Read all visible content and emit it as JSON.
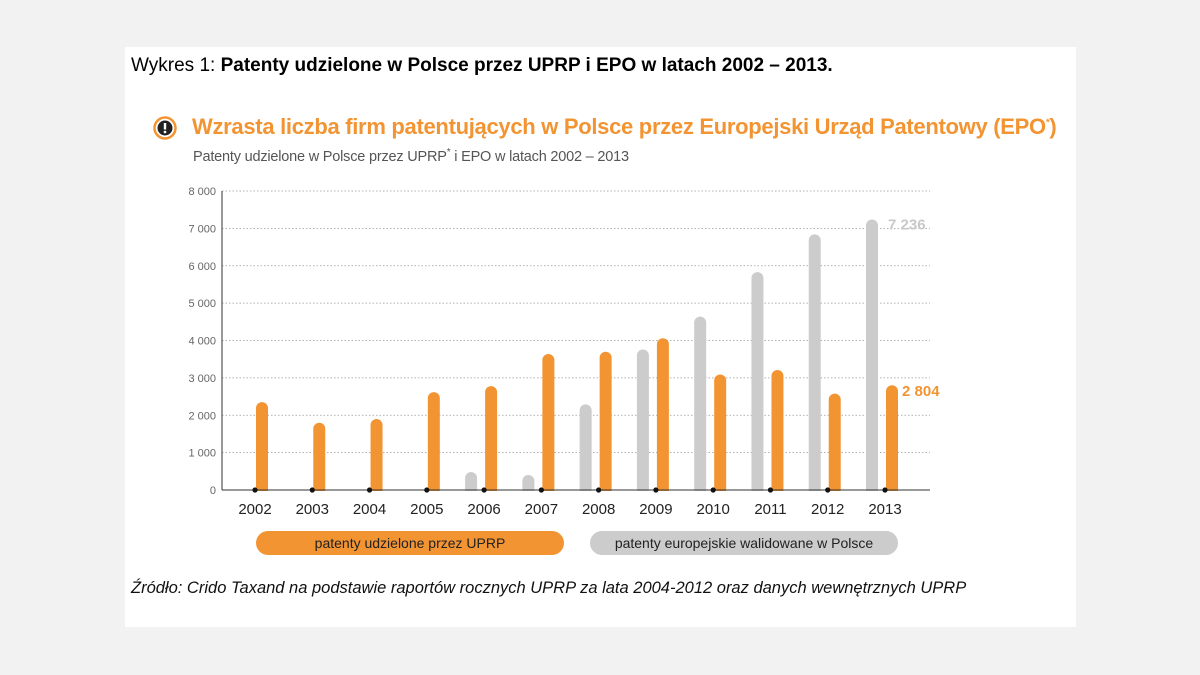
{
  "caption": {
    "prefix": "Wykres 1: ",
    "title": "Patenty udzielone w Polsce przez UPRP i EPO  w latach 2002 – 2013."
  },
  "headline": {
    "text": "Wzrasta liczba firm patentujących w Polsce przez Europejski Urząd Patentowy (EPO",
    "sup": "*",
    "close": ")"
  },
  "subhead": {
    "pre": "Patenty udzielone w Polsce przez UPRP",
    "sup": "*",
    "post": " i EPO w latach 2002 – 2013"
  },
  "colors": {
    "uprp": "#f39433",
    "epo": "#cccccc",
    "headline": "#f39433",
    "grid": "#999999"
  },
  "chart_data": {
    "type": "bar",
    "categories": [
      "2002",
      "2003",
      "2004",
      "2005",
      "2006",
      "2007",
      "2008",
      "2009",
      "2010",
      "2011",
      "2012",
      "2013"
    ],
    "series": [
      {
        "name": "patenty udzielone przez UPRP",
        "color": "#f39433",
        "values": [
          2350,
          1800,
          1900,
          2620,
          2780,
          3640,
          3700,
          4060,
          3090,
          3210,
          2580,
          2804
        ]
      },
      {
        "name": "patenty europejskie walidowane w Polsce",
        "color": "#cccccc",
        "values": [
          0,
          0,
          0,
          0,
          480,
          400,
          2290,
          3760,
          4640,
          5830,
          6840,
          7236
        ]
      }
    ],
    "ylim": [
      0,
      8000
    ],
    "yticks": [
      0,
      1000,
      2000,
      3000,
      4000,
      5000,
      6000,
      7000,
      8000
    ],
    "ytick_labels": [
      "0",
      "1 000",
      "2 000",
      "3 000",
      "4 000",
      "5 000",
      "6 000",
      "7 000",
      "8 000"
    ],
    "data_labels": {
      "epo_last": "7 236",
      "uprp_last": "2 804"
    },
    "grid": true,
    "legend": "bottom"
  },
  "source": "Źródło: Crido Taxand na podstawie raportów rocznych UPRP za lata 2004-2012 oraz danych wewnętrznych UPRP"
}
